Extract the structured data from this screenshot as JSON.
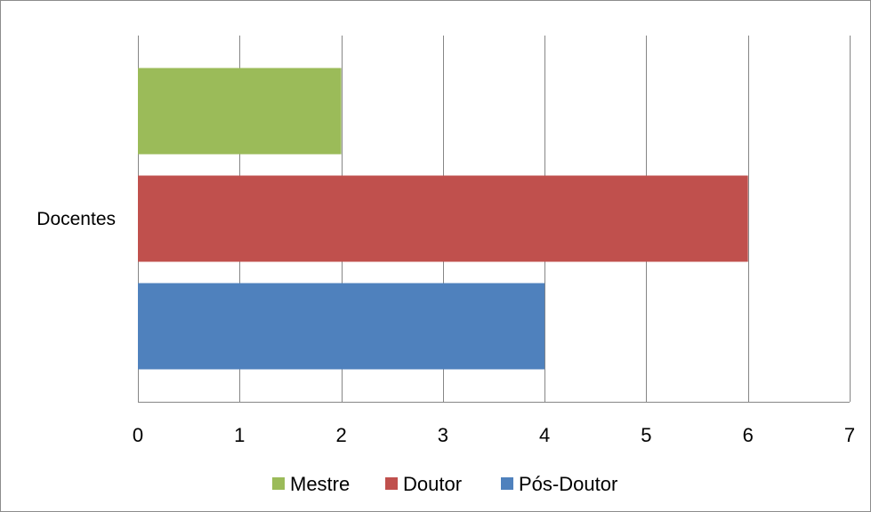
{
  "chart_data": {
    "type": "bar",
    "orientation": "horizontal",
    "categories": [
      "Docentes"
    ],
    "series": [
      {
        "name": "Pós-Doutor",
        "values": [
          4
        ],
        "color": "#4f81bd"
      },
      {
        "name": "Doutor",
        "values": [
          6
        ],
        "color": "#c0504d"
      },
      {
        "name": "Mestre",
        "values": [
          2
        ],
        "color": "#9bbb59"
      }
    ],
    "xlim": [
      0,
      7
    ],
    "xticks": [
      0,
      1,
      2,
      3,
      4,
      5,
      6,
      7
    ],
    "grid": true,
    "legend_position": "bottom",
    "legend_order": [
      "Mestre",
      "Doutor",
      "Pós-Doutor"
    ]
  }
}
